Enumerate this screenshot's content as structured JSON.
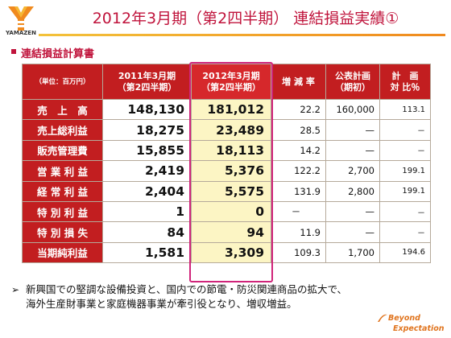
{
  "logo_text": "YAMAZEN",
  "title": "2012年3月期（第2四半期） 連結損益実績①",
  "section_title": "連結損益計算書",
  "table": {
    "header": {
      "unit": "（単位：百万円）",
      "prev_line1": "2011年3月期",
      "prev_line2": "（第2四半期）",
      "curr_line1": "2012年3月期",
      "curr_line2": "（第2四半期）",
      "rate": "増 減 率",
      "plan_line1": "公表計画",
      "plan_line2": "（期初）",
      "ratio_line1": "計　画",
      "ratio_line2": "対 比％"
    },
    "rows": [
      {
        "label": "売　上　高",
        "prev": "148,130",
        "curr": "181,012",
        "rate": "22.2",
        "plan": "160,000",
        "ratio": "113.1"
      },
      {
        "label": "売上総利益",
        "prev": "18,275",
        "curr": "23,489",
        "rate": "28.5",
        "plan": "—",
        "ratio": "－"
      },
      {
        "label": "販売管理費",
        "prev": "15,855",
        "curr": "18,113",
        "rate": "14.2",
        "plan": "—",
        "ratio": "－"
      },
      {
        "label": "営 業 利 益",
        "prev": "2,419",
        "curr": "5,376",
        "rate": "122.2",
        "plan": "2,700",
        "ratio": "199.1"
      },
      {
        "label": "経 常 利 益",
        "prev": "2,404",
        "curr": "5,575",
        "rate": "131.9",
        "plan": "2,800",
        "ratio": "199.1"
      },
      {
        "label": "特 別 利 益",
        "prev": "1",
        "curr": "0",
        "rate": "－",
        "plan": "—",
        "ratio": "－"
      },
      {
        "label": "特 別 損 失",
        "prev": "84",
        "curr": "94",
        "rate": "11.9",
        "plan": "—",
        "ratio": "－"
      },
      {
        "label": "当期純利益",
        "prev": "1,581",
        "curr": "3,309",
        "rate": "109.3",
        "plan": "1,700",
        "ratio": "194.6"
      }
    ]
  },
  "note": {
    "arrow": "➢",
    "line1": "新興国での堅調な設備投資と、国内での節電・防災関連商品の拡大で、",
    "line2": "海外生産財事業と家庭機器事業が牽引役となり、増収増益。"
  },
  "footer": {
    "beyond": "Beyond",
    "expectation": "Expectation"
  },
  "colors": {
    "accent": "#c0143c",
    "header_bg": "#c21e20",
    "highlight_fill": "#fcf5c4",
    "highlight_border": "#d0247a",
    "logo_orange": "#f08a1e"
  }
}
